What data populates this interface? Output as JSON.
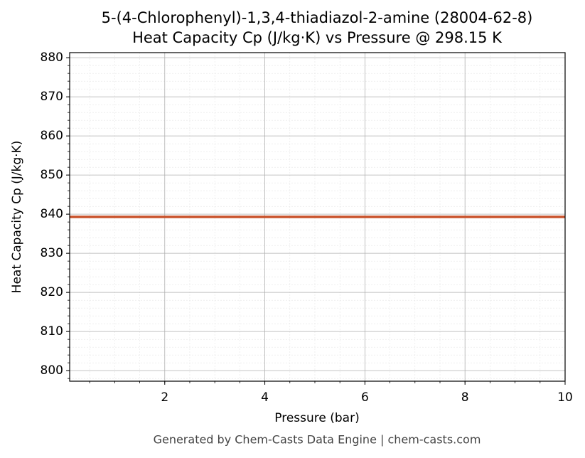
{
  "chart_data": {
    "type": "line",
    "title": "5-(4-Chlorophenyl)-1,3,4-thiadiazol-2-amine (28004-62-8)",
    "subtitle": "Heat Capacity Cp (J/kg·K) vs Pressure @ 298.15 K",
    "x_label": "Pressure (bar)",
    "y_label": "Heat Capacity Cp (J/kg·K)",
    "footer": "Generated by Chem-Casts Data Engine | chem-casts.com",
    "x": [
      0.1,
      10
    ],
    "series": [
      {
        "name": "Cp",
        "color": "#c9532c",
        "values": [
          839.3,
          839.3
        ]
      }
    ],
    "xlim": [
      0.1,
      10
    ],
    "xticks": [
      2,
      4,
      6,
      8,
      10
    ],
    "ylim": [
      797.3,
      881.3
    ],
    "yticks": [
      800,
      810,
      820,
      830,
      840,
      850,
      860,
      870,
      880
    ],
    "grid": true,
    "legend": false
  }
}
